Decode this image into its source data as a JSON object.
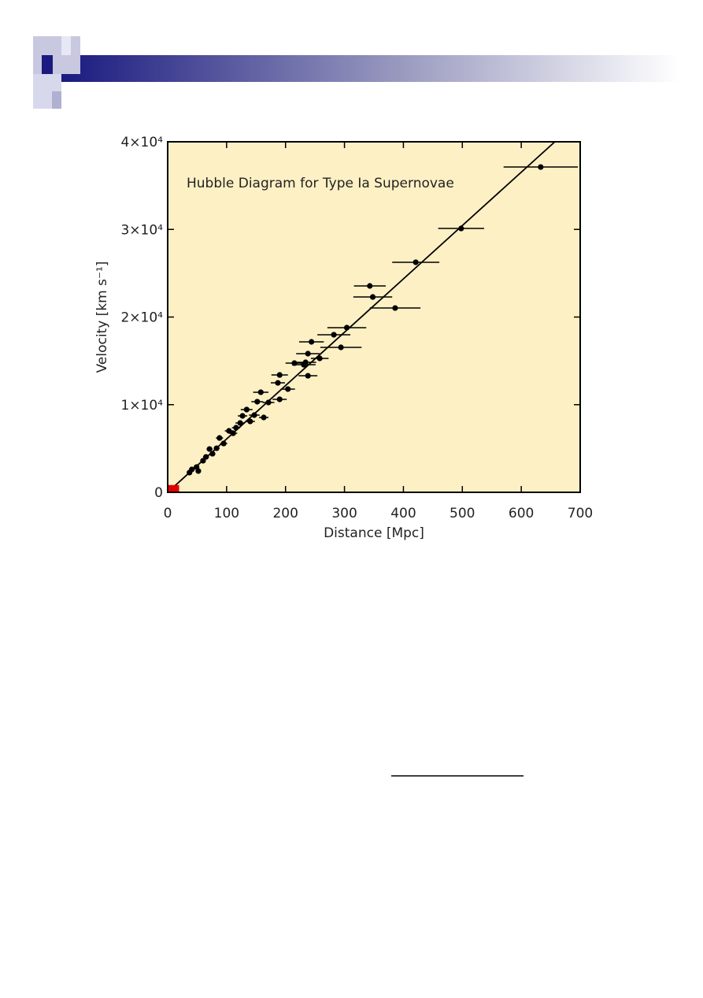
{
  "chart_data": {
    "type": "scatter",
    "annotation": "Hubble Diagram for Type Ia Supernovae",
    "xlabel": "Distance [Mpc]",
    "ylabel": "Velocity [km s⁻¹]",
    "xlim": [
      0,
      700
    ],
    "ylim": [
      0,
      40000
    ],
    "xticks": [
      0,
      100,
      200,
      300,
      400,
      500,
      600,
      700
    ],
    "yticks": [
      0,
      {
        "value": 10000,
        "label": "1×10⁴"
      },
      {
        "value": 20000,
        "label": "2×10⁴"
      },
      {
        "value": 30000,
        "label": "3×10⁴"
      },
      {
        "value": 40000,
        "label": "4×10⁴"
      }
    ],
    "background": "#fdf0c4",
    "series": [
      {
        "color": "#000000",
        "marker": "circle",
        "x": [
          633,
          498,
          421,
          343,
          348,
          386,
          304,
          282,
          294,
          244,
          238,
          258,
          234,
          215,
          231,
          238,
          190,
          187,
          204,
          158,
          190,
          152,
          171,
          134,
          163,
          147,
          140,
          123,
          116,
          104,
          111,
          88,
          95,
          83,
          71,
          76,
          65,
          60,
          49,
          41,
          37,
          52,
          127
        ],
        "values": [
          37120,
          30110,
          26250,
          23550,
          22290,
          21030,
          18790,
          17980,
          16540,
          17170,
          15820,
          15280,
          14830,
          14740,
          14560,
          13300,
          13390,
          12490,
          11780,
          11420,
          10610,
          10340,
          10250,
          9440,
          8540,
          8810,
          8090,
          7910,
          7370,
          7010,
          6740,
          6200,
          5570,
          5030,
          4940,
          4400,
          4040,
          3600,
          2880,
          2610,
          2250,
          2430,
          8720
        ],
        "xerr": [
          63,
          39,
          40,
          27,
          33,
          43,
          33,
          28,
          35,
          21,
          20,
          15,
          18,
          15,
          20,
          16,
          14,
          12,
          12,
          13,
          12,
          10,
          10,
          10,
          8,
          9,
          8,
          8,
          7,
          7,
          7,
          6,
          6,
          5,
          5,
          5,
          5,
          4,
          4,
          3,
          3,
          4,
          8
        ]
      },
      {
        "color": "#e00000",
        "marker": "square",
        "x": [
          10
        ],
        "values": [
          200
        ]
      }
    ],
    "fit": {
      "color": "#000000",
      "x": [
        0,
        657
      ],
      "values": [
        0,
        40000
      ]
    }
  }
}
